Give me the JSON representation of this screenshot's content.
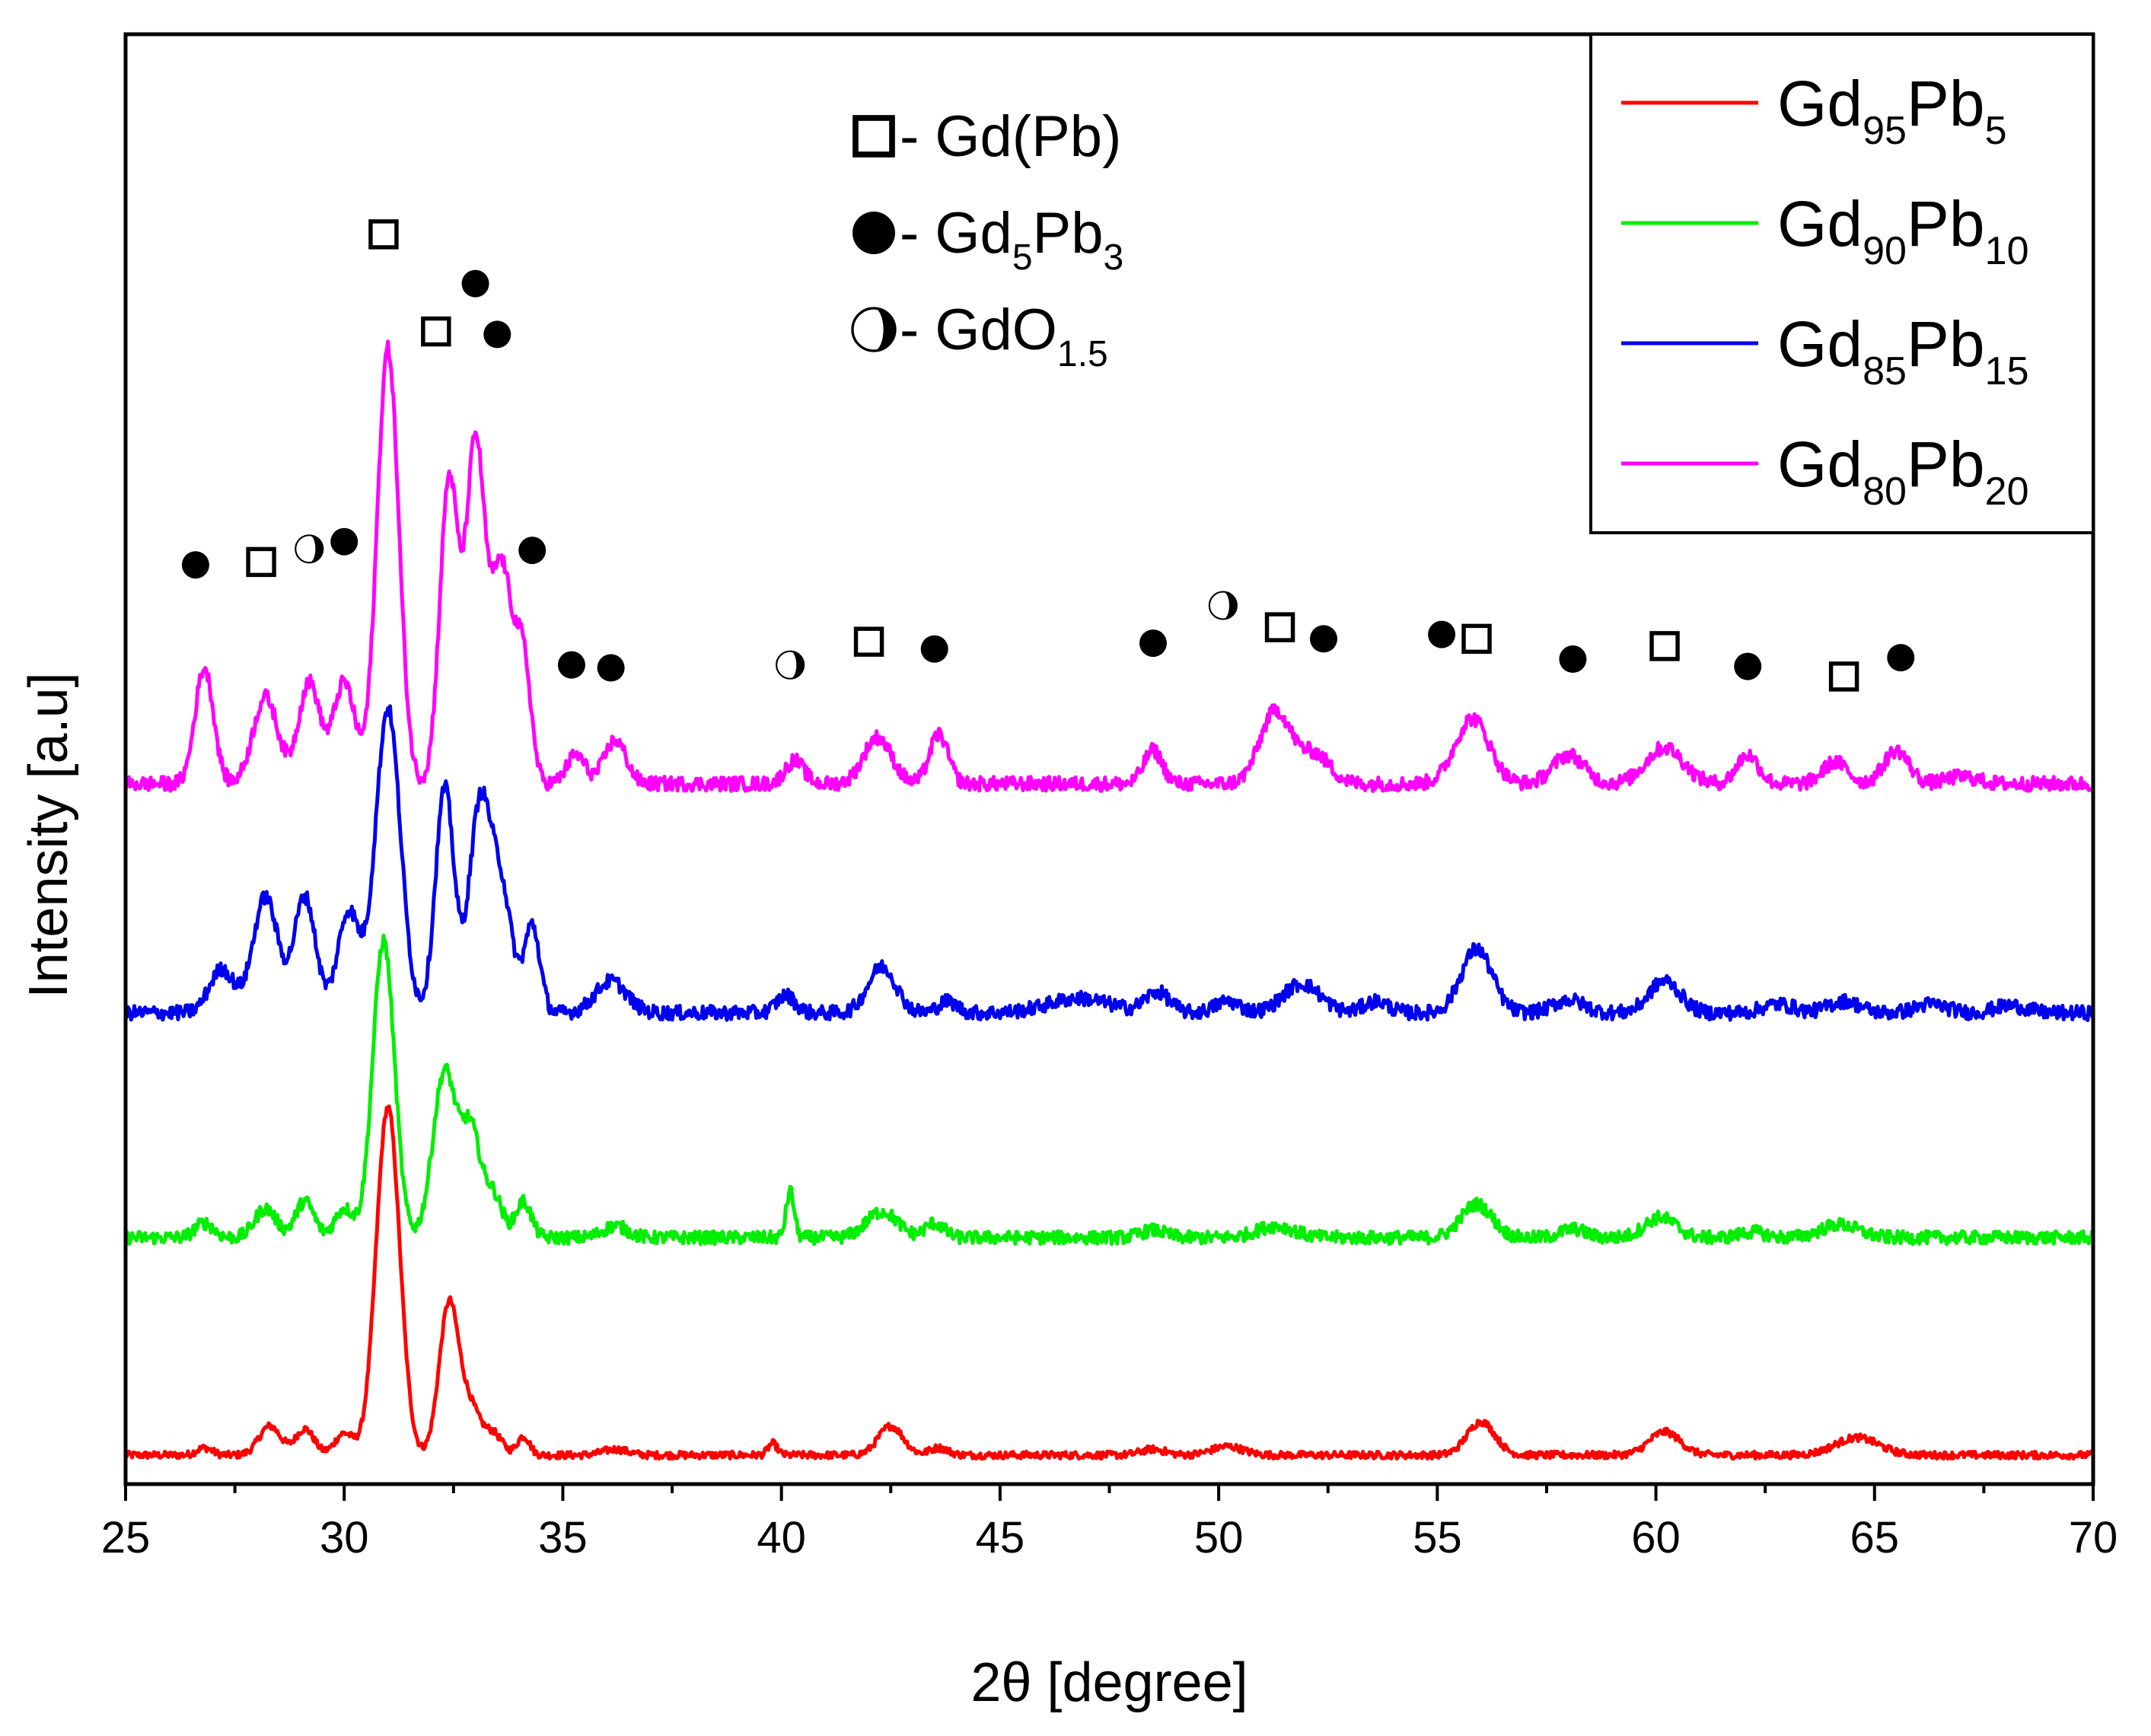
{
  "chart_data": {
    "type": "line",
    "title": "",
    "xlabel": "2θ [degree]",
    "ylabel": "Intensity [a.u]",
    "xlim": [
      25,
      70
    ],
    "ylim": [
      0,
      100
    ],
    "xticks": [
      25,
      30,
      35,
      40,
      45,
      50,
      55,
      60,
      65,
      70
    ],
    "xtick_labels": [
      "25",
      "30",
      "35",
      "40",
      "45",
      "50",
      "55",
      "60",
      "65",
      "70"
    ],
    "series": [
      {
        "name": "Gd95Pb5",
        "label_main": "Gd",
        "label_sub1": "95",
        "label_mid": "Pb",
        "label_sub2": "5",
        "color": "#ff0000",
        "baseline": 2,
        "noise": 0.25,
        "peaks": [
          [
            26.8,
            0.5,
            0.25
          ],
          [
            28.3,
            2.0,
            0.35
          ],
          [
            29.1,
            1.8,
            0.3
          ],
          [
            30.0,
            1.5,
            0.3
          ],
          [
            31.0,
            24.0,
            0.38
          ],
          [
            32.4,
            10.5,
            0.32
          ],
          [
            32.9,
            3.0,
            0.3
          ],
          [
            33.4,
            1.5,
            0.3
          ],
          [
            34.1,
            1.3,
            0.2
          ],
          [
            36.2,
            0.4,
            0.4
          ],
          [
            39.8,
            0.8,
            0.15
          ],
          [
            42.5,
            2.0,
            0.4
          ],
          [
            43.6,
            0.5,
            0.3
          ],
          [
            48.5,
            0.4,
            0.4
          ],
          [
            50.2,
            0.6,
            0.5
          ],
          [
            56.0,
            2.3,
            0.45
          ],
          [
            60.2,
            1.6,
            0.5
          ],
          [
            64.6,
            1.2,
            0.7
          ]
        ]
      },
      {
        "name": "Gd90Pb10",
        "label_main": "Gd",
        "label_sub1": "90",
        "label_mid": "Pb",
        "label_sub2": "10",
        "color": "#00ee00",
        "baseline": 17,
        "noise": 0.45,
        "peaks": [
          [
            26.8,
            1.0,
            0.3
          ],
          [
            28.2,
            2.0,
            0.35
          ],
          [
            29.1,
            2.5,
            0.3
          ],
          [
            30.0,
            2.0,
            0.3
          ],
          [
            30.9,
            20.5,
            0.35
          ],
          [
            32.3,
            11.5,
            0.38
          ],
          [
            32.9,
            7.0,
            0.3
          ],
          [
            33.4,
            3.0,
            0.3
          ],
          [
            34.1,
            2.5,
            0.25
          ],
          [
            36.2,
            0.8,
            0.4
          ],
          [
            40.2,
            3.2,
            0.13
          ],
          [
            42.3,
            1.8,
            0.5
          ],
          [
            43.5,
            1.0,
            0.3
          ],
          [
            48.5,
            0.5,
            0.4
          ],
          [
            51.3,
            0.8,
            0.6
          ],
          [
            55.9,
            2.3,
            0.5
          ],
          [
            58.1,
            0.6,
            0.4
          ],
          [
            60.1,
            1.4,
            0.5
          ],
          [
            62.2,
            0.4,
            0.4
          ],
          [
            64.2,
            0.9,
            0.6
          ]
        ]
      },
      {
        "name": "Gd85Pb15",
        "label_main": "Gd",
        "label_sub1": "85",
        "label_mid": "Pb",
        "label_sub2": "15",
        "color": "#0000ee",
        "baseline": 32.5,
        "noise": 0.5,
        "peaks": [
          [
            27.2,
            3.0,
            0.4
          ],
          [
            28.2,
            8.0,
            0.4
          ],
          [
            29.1,
            8.0,
            0.35
          ],
          [
            30.1,
            7.0,
            0.35
          ],
          [
            31.0,
            21.0,
            0.4
          ],
          [
            32.3,
            15.5,
            0.3
          ],
          [
            33.1,
            14.0,
            0.35
          ],
          [
            33.6,
            8.0,
            0.35
          ],
          [
            34.3,
            6.0,
            0.25
          ],
          [
            36.1,
            2.2,
            0.5
          ],
          [
            40.1,
            1.2,
            0.3
          ],
          [
            42.3,
            3.2,
            0.45
          ],
          [
            43.8,
            0.8,
            0.3
          ],
          [
            46.8,
            1.0,
            1.0
          ],
          [
            48.6,
            1.4,
            0.4
          ],
          [
            50.2,
            0.8,
            0.4
          ],
          [
            51.9,
            2.0,
            0.6
          ],
          [
            53.6,
            0.8,
            0.4
          ],
          [
            55.9,
            4.4,
            0.5
          ],
          [
            58.0,
            0.9,
            0.5
          ],
          [
            60.2,
            2.2,
            0.5
          ],
          [
            62.8,
            0.6,
            0.5
          ],
          [
            64.3,
            0.8,
            0.5
          ],
          [
            66.3,
            0.6,
            0.5
          ],
          [
            68.1,
            0.5,
            0.5
          ]
        ]
      },
      {
        "name": "Gd80Pb20",
        "label_main": "Gd",
        "label_sub1": "80",
        "label_mid": "Pb",
        "label_sub2": "20",
        "color": "#ff00ff",
        "baseline": 48.3,
        "noise": 0.5,
        "peaks": [
          [
            26.8,
            8.0,
            0.3
          ],
          [
            28.2,
            6.0,
            0.4
          ],
          [
            29.2,
            7.0,
            0.35
          ],
          [
            30.0,
            7.0,
            0.35
          ],
          [
            31.0,
            30.0,
            0.35
          ],
          [
            32.4,
            21.0,
            0.3
          ],
          [
            33.0,
            23.0,
            0.3
          ],
          [
            33.6,
            15.0,
            0.35
          ],
          [
            34.1,
            8.0,
            0.25
          ],
          [
            35.3,
            2.0,
            0.3
          ],
          [
            36.2,
            3.0,
            0.35
          ],
          [
            40.3,
            1.6,
            0.3
          ],
          [
            42.2,
            3.2,
            0.45
          ],
          [
            43.6,
            3.4,
            0.3
          ],
          [
            48.5,
            2.3,
            0.3
          ],
          [
            51.3,
            5.0,
            0.5
          ],
          [
            52.2,
            2.0,
            0.5
          ],
          [
            55.8,
            4.5,
            0.55
          ],
          [
            58.0,
            2.0,
            0.5
          ],
          [
            60.2,
            2.5,
            0.6
          ],
          [
            62.1,
            2.0,
            0.35
          ],
          [
            64.1,
            1.5,
            0.4
          ],
          [
            65.5,
            2.3,
            0.4
          ],
          [
            67.0,
            0.5,
            0.5
          ]
        ]
      }
    ],
    "phase_legend": [
      {
        "marker": "square",
        "prefix": " - ",
        "name": "Gd(Pb)",
        "sub": "",
        "post": ""
      },
      {
        "marker": "circle",
        "prefix": " - ",
        "name": "Gd",
        "sub": "5",
        "mid": "Pb",
        "sub2": "3"
      },
      {
        "marker": "halfcircle",
        "prefix": " - ",
        "name": "GdO",
        "sub": "1.5",
        "mid": "",
        "sub2": ""
      }
    ],
    "phase_annotations": [
      {
        "marker": "circle",
        "x": 26.6,
        "y": 63.4
      },
      {
        "marker": "square",
        "x": 28.1,
        "y": 63.6
      },
      {
        "marker": "halfcircle",
        "x": 29.2,
        "y": 64.5
      },
      {
        "marker": "circle",
        "x": 30.0,
        "y": 65.0
      },
      {
        "marker": "square",
        "x": 30.9,
        "y": 86.2
      },
      {
        "marker": "square",
        "x": 32.1,
        "y": 79.5
      },
      {
        "marker": "circle",
        "x": 33.0,
        "y": 82.8
      },
      {
        "marker": "circle",
        "x": 33.5,
        "y": 79.3
      },
      {
        "marker": "circle",
        "x": 34.3,
        "y": 64.4
      },
      {
        "marker": "circle",
        "x": 35.2,
        "y": 56.5
      },
      {
        "marker": "circle",
        "x": 36.1,
        "y": 56.3
      },
      {
        "marker": "halfcircle",
        "x": 40.2,
        "y": 56.5
      },
      {
        "marker": "square",
        "x": 42.0,
        "y": 58.1
      },
      {
        "marker": "circle",
        "x": 43.5,
        "y": 57.6
      },
      {
        "marker": "circle",
        "x": 48.5,
        "y": 58.0
      },
      {
        "marker": "halfcircle",
        "x": 50.1,
        "y": 60.6
      },
      {
        "marker": "square",
        "x": 51.4,
        "y": 59.1
      },
      {
        "marker": "circle",
        "x": 52.4,
        "y": 58.3
      },
      {
        "marker": "circle",
        "x": 55.1,
        "y": 58.6
      },
      {
        "marker": "square",
        "x": 55.9,
        "y": 58.3
      },
      {
        "marker": "circle",
        "x": 58.1,
        "y": 56.9
      },
      {
        "marker": "square",
        "x": 60.2,
        "y": 57.8
      },
      {
        "marker": "circle",
        "x": 62.1,
        "y": 56.4
      },
      {
        "marker": "square",
        "x": 64.3,
        "y": 55.7
      },
      {
        "marker": "circle",
        "x": 65.6,
        "y": 57.0
      }
    ]
  }
}
